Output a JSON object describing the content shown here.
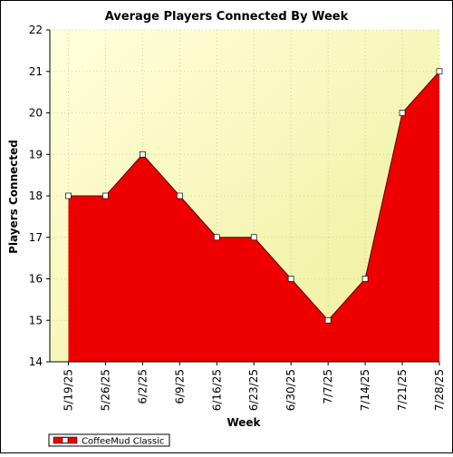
{
  "chart_data": {
    "type": "area",
    "title": "Average Players Connected By Week",
    "xlabel": "Week",
    "ylabel": "Players Connected",
    "categories": [
      "5/19/25",
      "5/26/25",
      "6/2/25",
      "6/9/25",
      "6/16/25",
      "6/23/25",
      "6/30/25",
      "7/7/25",
      "7/14/25",
      "7/21/25",
      "7/28/25"
    ],
    "series": [
      {
        "name": "CoffeeMud Classic",
        "values": [
          18,
          18,
          19,
          18,
          17,
          17,
          16,
          15,
          16,
          20,
          21
        ],
        "color": "#ee0000"
      }
    ],
    "ylim": [
      14,
      22
    ],
    "yticks": [
      14,
      15,
      16,
      17,
      18,
      19,
      20,
      21,
      22
    ],
    "grid": true,
    "legend_position": "bottom-left",
    "plot_background": [
      "#ffffdd",
      "#eeee99"
    ]
  }
}
